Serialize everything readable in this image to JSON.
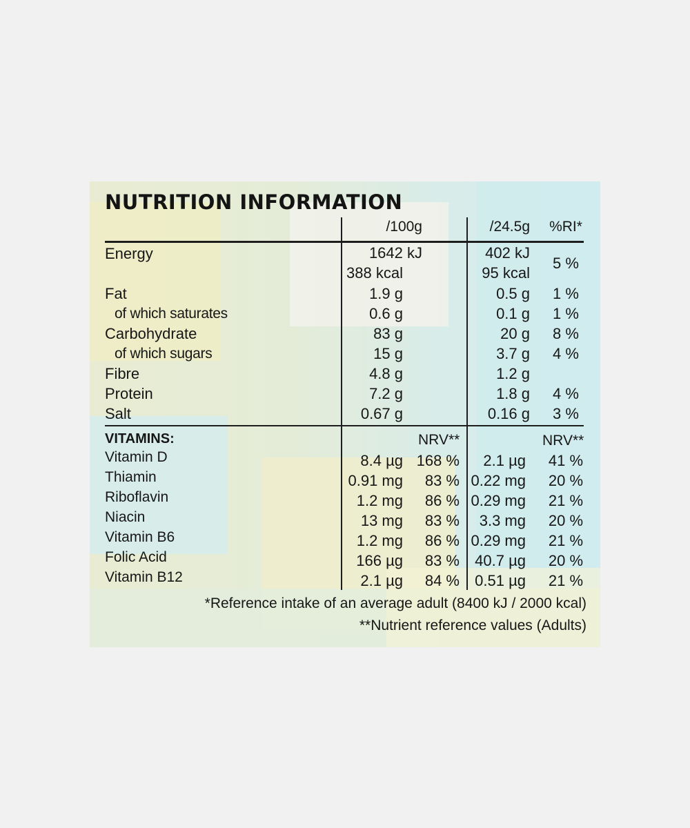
{
  "title": "NUTRITION INFORMATION",
  "headers": {
    "per100": "/100g",
    "perServing": "/24.5g",
    "ri": "%RI*"
  },
  "energy": {
    "label": "Energy",
    "per100_kj": "1642 kJ",
    "per100_kcal": "388 kcal",
    "serving_kj": "402 kJ",
    "serving_kcal": "95 kcal",
    "ri": "5 %"
  },
  "nutrients": [
    {
      "label": "Fat",
      "per100": "1.9 g",
      "serving": "0.5 g",
      "ri": "1 %",
      "sub": false
    },
    {
      "label": "of which saturates",
      "per100": "0.6 g",
      "serving": "0.1 g",
      "ri": "1 %",
      "sub": true
    },
    {
      "label": "Carbohydrate",
      "per100": "83 g",
      "serving": "20 g",
      "ri": "8 %",
      "sub": false
    },
    {
      "label": "of which sugars",
      "per100": "15 g",
      "serving": "3.7 g",
      "ri": "4 %",
      "sub": true
    },
    {
      "label": "Fibre",
      "per100": "4.8 g",
      "serving": "1.2 g",
      "ri": "",
      "sub": false
    },
    {
      "label": "Protein",
      "per100": "7.2 g",
      "serving": "1.8 g",
      "ri": "4 %",
      "sub": false
    },
    {
      "label": "Salt",
      "per100": "0.67 g",
      "serving": "0.16 g",
      "ri": "3 %",
      "sub": false
    }
  ],
  "vitamins": {
    "title": "VITAMINS:",
    "nrv_label_100": "NRV**",
    "nrv_label_serving": "NRV**",
    "rows": [
      {
        "label": "Vitamin D",
        "per100": "8.4 µg",
        "nrv100": "168 %",
        "serving": "2.1 µg",
        "nrvServing": "41 %"
      },
      {
        "label": "Thiamin",
        "per100": "0.91 mg",
        "nrv100": "83 %",
        "serving": "0.22 mg",
        "nrvServing": "20 %"
      },
      {
        "label": "Riboflavin",
        "per100": "1.2 mg",
        "nrv100": "86 %",
        "serving": "0.29 mg",
        "nrvServing": "21 %"
      },
      {
        "label": "Niacin",
        "per100": "13 mg",
        "nrv100": "83 %",
        "serving": "3.3 mg",
        "nrvServing": "20 %"
      },
      {
        "label": "Vitamin B6",
        "per100": "1.2 mg",
        "nrv100": "86 %",
        "serving": "0.29 mg",
        "nrvServing": "21 %"
      },
      {
        "label": "Folic Acid",
        "per100": "166 µg",
        "nrv100": "83 %",
        "serving": "40.7 µg",
        "nrvServing": "20 %"
      },
      {
        "label": "Vitamin B12",
        "per100": "2.1 µg",
        "nrv100": "84 %",
        "serving": "0.51 µg",
        "nrvServing": "21 %"
      }
    ]
  },
  "footnotes": [
    "*Reference intake of an average adult (8400 kJ / 2000 kcal)",
    "**Nutrient reference values (Adults)"
  ]
}
